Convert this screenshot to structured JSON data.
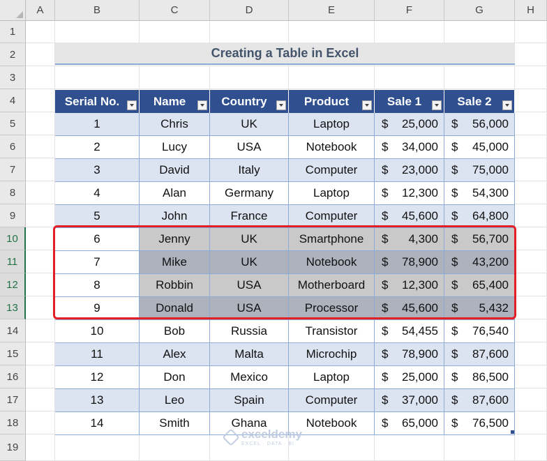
{
  "columns": [
    "A",
    "B",
    "C",
    "D",
    "E",
    "F",
    "G",
    "H"
  ],
  "rows": [
    "1",
    "2",
    "3",
    "4",
    "5",
    "6",
    "7",
    "8",
    "9",
    "10",
    "11",
    "12",
    "13",
    "14",
    "15",
    "16",
    "17",
    "18",
    "19"
  ],
  "title": "Creating a Table in Excel",
  "table": {
    "headers": [
      "Serial No.",
      "Name",
      "Country",
      "Product",
      "Sale 1",
      "Sale 2"
    ],
    "currency_symbol": "$",
    "rows": [
      {
        "serial": "1",
        "name": "Chris",
        "country": "UK",
        "product": "Laptop",
        "sale1": "25,000",
        "sale2": "56,000"
      },
      {
        "serial": "2",
        "name": "Lucy",
        "country": "USA",
        "product": "Notebook",
        "sale1": "34,000",
        "sale2": "45,000"
      },
      {
        "serial": "3",
        "name": "David",
        "country": "Italy",
        "product": "Computer",
        "sale1": "23,000",
        "sale2": "75,000"
      },
      {
        "serial": "4",
        "name": "Alan",
        "country": "Germany",
        "product": "Laptop",
        "sale1": "12,300",
        "sale2": "54,300"
      },
      {
        "serial": "5",
        "name": "John",
        "country": "France",
        "product": "Computer",
        "sale1": "45,600",
        "sale2": "64,800"
      },
      {
        "serial": "6",
        "name": "Jenny",
        "country": "UK",
        "product": "Smartphone",
        "sale1": "4,300",
        "sale2": "56,700"
      },
      {
        "serial": "7",
        "name": "Mike",
        "country": "UK",
        "product": "Notebook",
        "sale1": "78,900",
        "sale2": "43,200"
      },
      {
        "serial": "8",
        "name": "Robbin",
        "country": "USA",
        "product": "Motherboard",
        "sale1": "12,300",
        "sale2": "65,400"
      },
      {
        "serial": "9",
        "name": "Donald",
        "country": "USA",
        "product": "Processor",
        "sale1": "45,600",
        "sale2": "5,432"
      },
      {
        "serial": "10",
        "name": "Bob",
        "country": "Russia",
        "product": "Transistor",
        "sale1": "54,455",
        "sale2": "76,540"
      },
      {
        "serial": "11",
        "name": "Alex",
        "country": "Malta",
        "product": "Microchip",
        "sale1": "78,900",
        "sale2": "87,600"
      },
      {
        "serial": "12",
        "name": "Don",
        "country": "Mexico",
        "product": "Laptop",
        "sale1": "25,000",
        "sale2": "86,500"
      },
      {
        "serial": "13",
        "name": "Leo",
        "country": "Spain",
        "product": "Computer",
        "sale1": "37,000",
        "sale2": "87,600"
      },
      {
        "serial": "14",
        "name": "Smith",
        "country": "Ghana",
        "product": "Notebook",
        "sale1": "65,000",
        "sale2": "76,500"
      }
    ]
  },
  "selected_rows": [
    "10",
    "11",
    "12",
    "13"
  ],
  "watermark": {
    "name": "exceldemy",
    "tagline": "EXCEL · DATA · BI"
  },
  "colors": {
    "header_bg": "#2f4f8f",
    "band": "#dce3f1",
    "grey_band": "#c9c9c9",
    "dark_grey_band": "#adb2bd",
    "highlight_border": "#e31e24"
  }
}
